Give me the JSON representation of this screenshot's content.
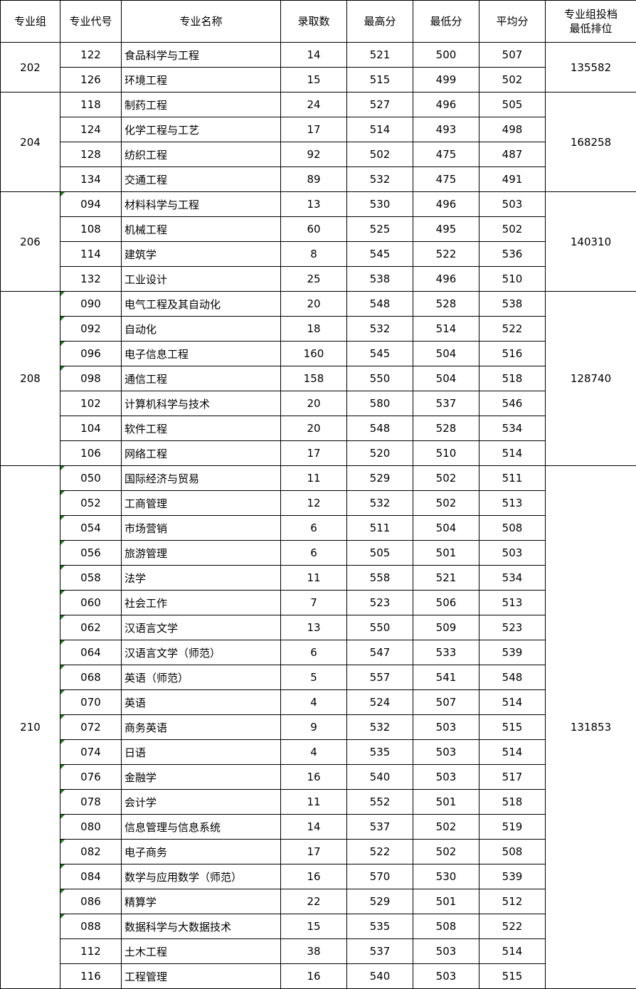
{
  "headers": [
    "专业组",
    "专业代号",
    "专业名称",
    "录取数",
    "最高分",
    "最低分",
    "平均分",
    "专业组投档\n最低排位"
  ],
  "colors": {
    "comment_marker": "#1e7a1e",
    "border": "#000000"
  },
  "groups": [
    {
      "group": "202",
      "rank": "135582",
      "rows": [
        [
          "122",
          "食品科学与工程",
          "14",
          "521",
          "500",
          "507",
          false
        ],
        [
          "126",
          "环境工程",
          "15",
          "515",
          "499",
          "502",
          false
        ]
      ]
    },
    {
      "group": "204",
      "rank": "168258",
      "rows": [
        [
          "118",
          "制药工程",
          "24",
          "527",
          "496",
          "505",
          false
        ],
        [
          "124",
          "化学工程与工艺",
          "17",
          "514",
          "493",
          "498",
          false
        ],
        [
          "128",
          "纺织工程",
          "92",
          "502",
          "475",
          "487",
          false
        ],
        [
          "134",
          "交通工程",
          "89",
          "532",
          "475",
          "491",
          false
        ]
      ]
    },
    {
      "group": "206",
      "rank": "140310",
      "rows": [
        [
          "094",
          "材料科学与工程",
          "13",
          "530",
          "496",
          "503",
          true
        ],
        [
          "108",
          "机械工程",
          "60",
          "525",
          "495",
          "502",
          false
        ],
        [
          "114",
          "建筑学",
          "8",
          "545",
          "522",
          "536",
          false
        ],
        [
          "132",
          "工业设计",
          "25",
          "538",
          "496",
          "510",
          false
        ]
      ]
    },
    {
      "group": "208",
      "rank": "128740",
      "rows": [
        [
          "090",
          "电气工程及其自动化",
          "20",
          "548",
          "528",
          "538",
          true
        ],
        [
          "092",
          "自动化",
          "18",
          "532",
          "514",
          "522",
          true
        ],
        [
          "096",
          "电子信息工程",
          "160",
          "545",
          "504",
          "516",
          true
        ],
        [
          "098",
          "通信工程",
          "158",
          "550",
          "504",
          "518",
          true
        ],
        [
          "102",
          "计算机科学与技术",
          "20",
          "580",
          "537",
          "546",
          false
        ],
        [
          "104",
          "软件工程",
          "20",
          "548",
          "528",
          "534",
          false
        ],
        [
          "106",
          "网络工程",
          "17",
          "520",
          "510",
          "514",
          false
        ]
      ]
    },
    {
      "group": "210",
      "rank": "131853",
      "rows": [
        [
          "050",
          "国际经济与贸易",
          "11",
          "529",
          "502",
          "511",
          true
        ],
        [
          "052",
          "工商管理",
          "12",
          "532",
          "502",
          "513",
          true
        ],
        [
          "054",
          "市场营销",
          "6",
          "511",
          "504",
          "508",
          true
        ],
        [
          "056",
          "旅游管理",
          "6",
          "505",
          "501",
          "503",
          true
        ],
        [
          "058",
          "法学",
          "11",
          "558",
          "521",
          "534",
          true
        ],
        [
          "060",
          "社会工作",
          "7",
          "523",
          "506",
          "513",
          true
        ],
        [
          "062",
          "汉语言文学",
          "13",
          "550",
          "509",
          "523",
          true
        ],
        [
          "064",
          "汉语言文学（师范）",
          "6",
          "547",
          "533",
          "539",
          true
        ],
        [
          "068",
          "英语（师范）",
          "5",
          "557",
          "541",
          "548",
          true
        ],
        [
          "070",
          "英语",
          "4",
          "524",
          "507",
          "514",
          true
        ],
        [
          "072",
          "商务英语",
          "9",
          "532",
          "503",
          "515",
          true
        ],
        [
          "074",
          "日语",
          "4",
          "535",
          "503",
          "514",
          true
        ],
        [
          "076",
          "金融学",
          "16",
          "540",
          "503",
          "517",
          true
        ],
        [
          "078",
          "会计学",
          "11",
          "552",
          "501",
          "518",
          true
        ],
        [
          "080",
          "信息管理与信息系统",
          "14",
          "537",
          "502",
          "519",
          true
        ],
        [
          "082",
          "电子商务",
          "17",
          "522",
          "502",
          "508",
          true
        ],
        [
          "084",
          "数学与应用数学（师范）",
          "16",
          "570",
          "530",
          "539",
          true
        ],
        [
          "086",
          "精算学",
          "22",
          "529",
          "501",
          "512",
          true
        ],
        [
          "088",
          "数据科学与大数据技术",
          "15",
          "535",
          "508",
          "522",
          true
        ],
        [
          "112",
          "土木工程",
          "38",
          "537",
          "503",
          "514",
          false
        ],
        [
          "116",
          "工程管理",
          "16",
          "540",
          "503",
          "515",
          false
        ]
      ]
    }
  ]
}
